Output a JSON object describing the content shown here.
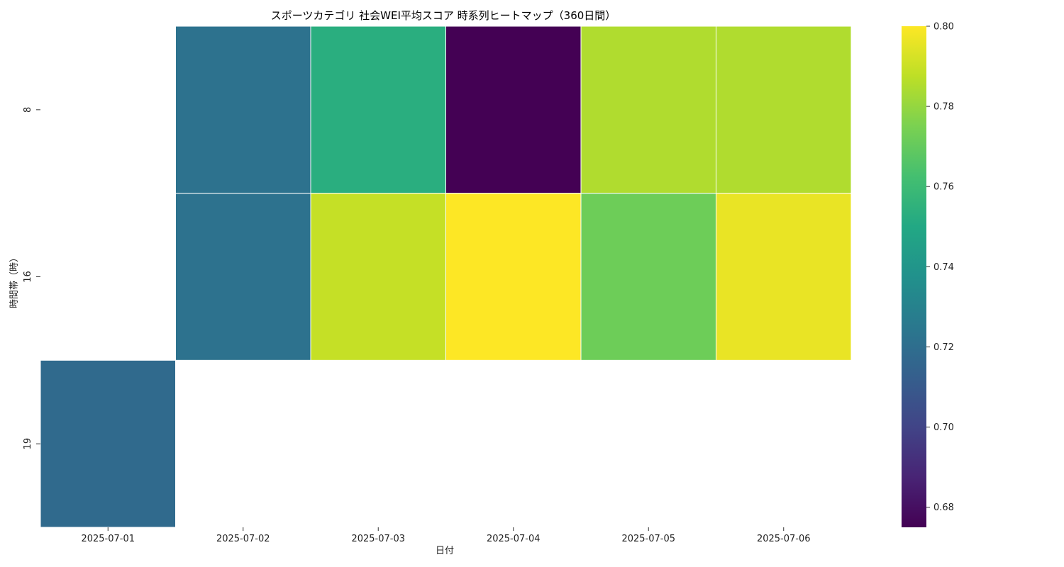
{
  "chart_data": {
    "type": "heatmap",
    "title": "スポーツカテゴリ 社会WEI平均スコア 時系列ヒートマップ（360日間）",
    "xlabel": "日付",
    "ylabel": "時間帯（時）",
    "x_categories": [
      "2025-07-01",
      "2025-07-02",
      "2025-07-03",
      "2025-07-04",
      "2025-07-05",
      "2025-07-06"
    ],
    "y_categories": [
      "8",
      "16",
      "19"
    ],
    "values": [
      [
        null,
        0.722,
        0.753,
        0.675,
        0.785,
        0.785
      ],
      [
        null,
        0.722,
        0.789,
        0.8,
        0.772,
        0.796
      ],
      [
        0.718,
        null,
        null,
        null,
        null,
        null
      ]
    ],
    "colormap": "viridis",
    "colorbar": {
      "min": 0.675,
      "max": 0.8,
      "ticks": [
        "0.68",
        "0.70",
        "0.72",
        "0.74",
        "0.76",
        "0.78",
        "0.80"
      ]
    },
    "missing_color": "#ffffff",
    "grid": false
  }
}
